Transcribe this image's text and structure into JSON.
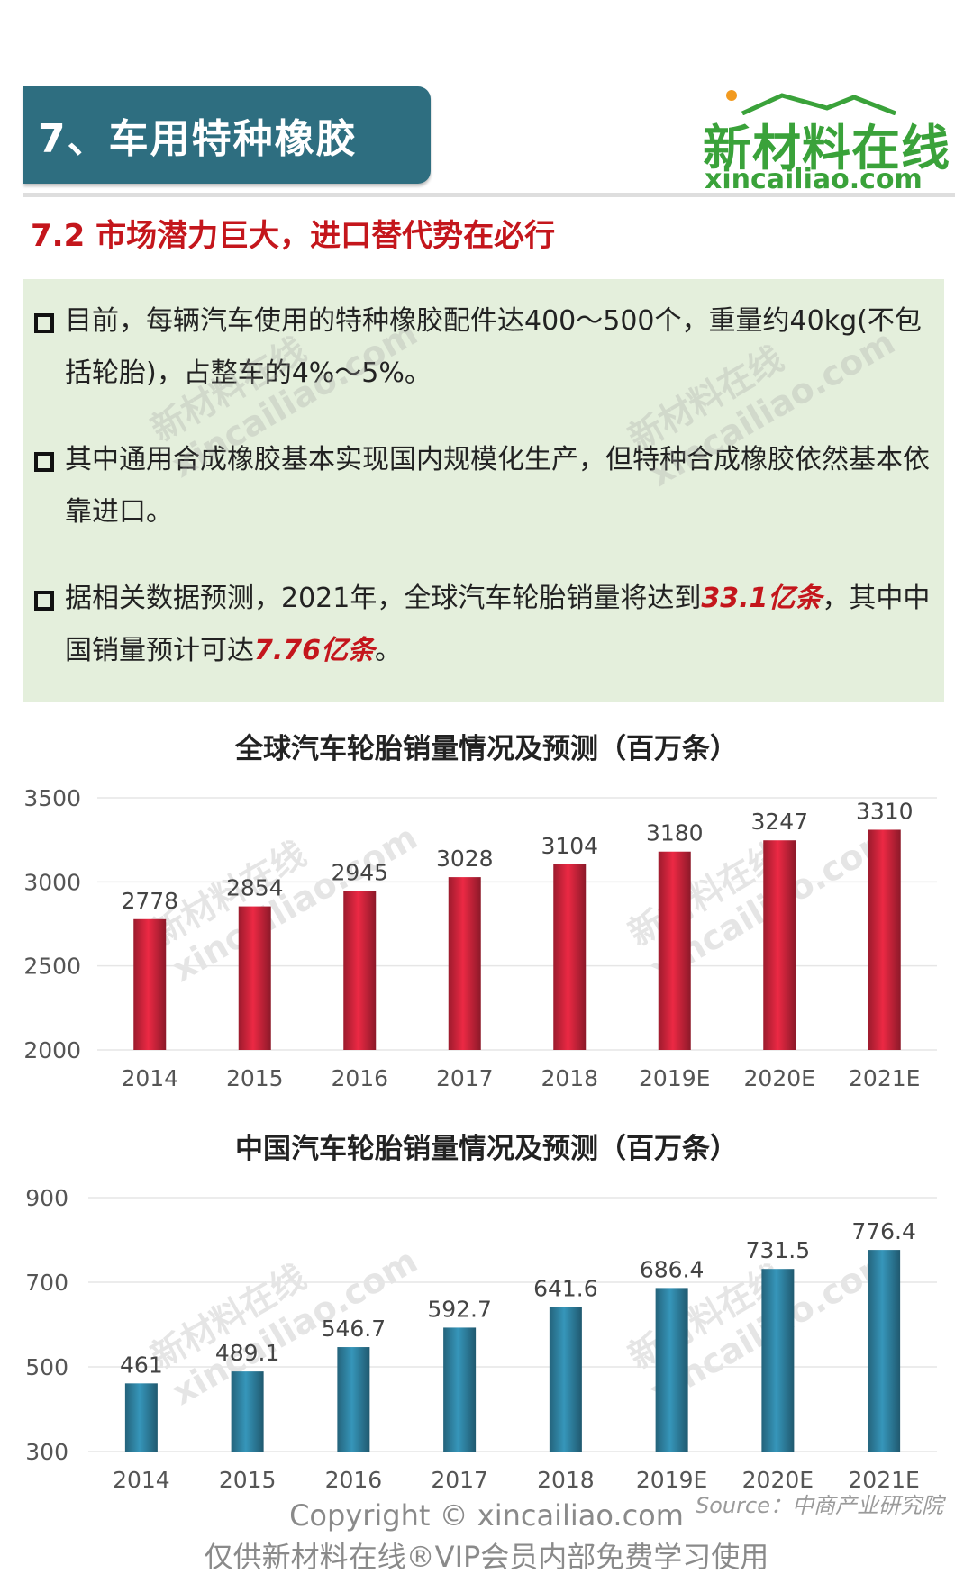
{
  "header": {
    "title": "7、车用特种橡胶",
    "brand_cn": "新材料在线",
    "brand_en": "xincailiao.com"
  },
  "subtitle": "7.2 市场潜力巨大，进口替代势在必行",
  "bullets": [
    {
      "parts": [
        {
          "text": "目前，每辆汽车使用的特种橡胶配件达400～500个，重量约40kg(不包括轮胎)，占整车的4%～5%。",
          "highlight": false
        }
      ]
    },
    {
      "parts": [
        {
          "text": "其中通用合成橡胶基本实现国内规模化生产，但特种合成橡胶依然基本依靠进口。",
          "highlight": false
        }
      ]
    },
    {
      "parts": [
        {
          "text": "据相关数据预测，2021年，全球汽车轮胎销量将达到",
          "highlight": false
        },
        {
          "text": "33.1亿条",
          "highlight": true
        },
        {
          "text": "，其中中国销量预计可达",
          "highlight": false
        },
        {
          "text": "7.76亿条",
          "highlight": true
        },
        {
          "text": "。",
          "highlight": false
        }
      ]
    }
  ],
  "watermark": {
    "line1": "新材料在线",
    "line2": "xincailiao.com"
  },
  "chart_data": [
    {
      "type": "bar",
      "title": "全球汽车轮胎销量情况及预测（百万条）",
      "categories": [
        "2014",
        "2015",
        "2016",
        "2017",
        "2018",
        "2019E",
        "2020E",
        "2021E"
      ],
      "values": [
        2778,
        2854,
        2945,
        3028,
        3104,
        3180,
        3247,
        3310
      ],
      "yticks": [
        2000,
        2500,
        3000,
        3500
      ],
      "ylim": [
        2000,
        3500
      ],
      "color": "#c8233a",
      "grid": true
    },
    {
      "type": "bar",
      "title": "中国汽车轮胎销量情况及预测（百万条）",
      "categories": [
        "2014",
        "2015",
        "2016",
        "2017",
        "2018",
        "2019E",
        "2020E",
        "2021E"
      ],
      "values": [
        461,
        489.1,
        546.7,
        592.7,
        641.6,
        686.4,
        731.5,
        776.4
      ],
      "value_labels": [
        "461",
        "489.1",
        "546.7",
        "592.7",
        "641.6",
        "686.4",
        "731.5",
        "776.4"
      ],
      "yticks": [
        300,
        500,
        700,
        900
      ],
      "ylim": [
        300,
        900
      ],
      "color": "#2e7f9e",
      "grid": true
    }
  ],
  "footer": {
    "copyright": "Copyright © xincailiao.com",
    "vip": "仅供新材料在线®VIP会员内部免费学习使用",
    "source": "Source：中商产业研究院"
  }
}
